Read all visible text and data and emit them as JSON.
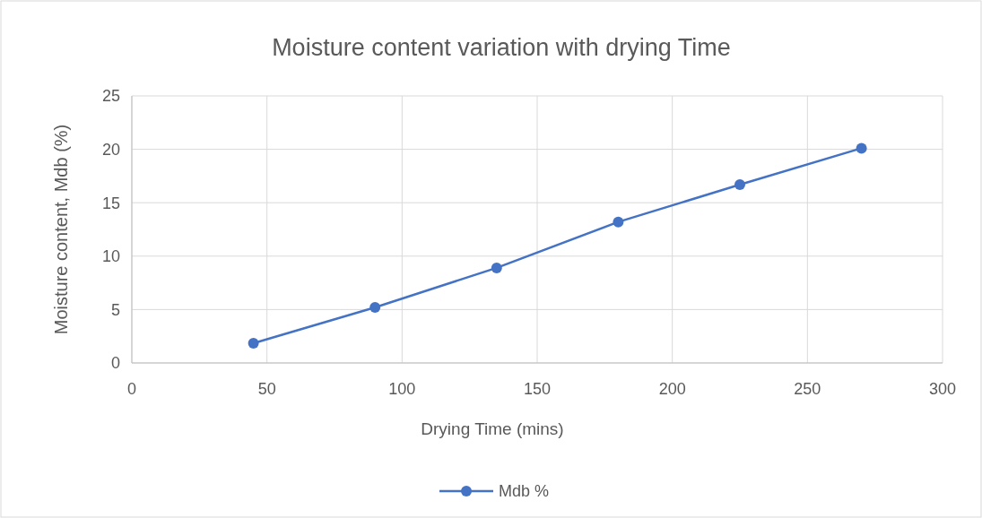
{
  "chart_data": {
    "type": "line",
    "title": "Moisture content variation with drying Time",
    "xlabel": "Drying Time (mins)",
    "ylabel": "Moisture content, Mdb (%)",
    "x": [
      45,
      90,
      135,
      180,
      225,
      270
    ],
    "series": [
      {
        "name": "Mdb %",
        "color": "#4472c4",
        "values": [
          1.85,
          5.2,
          8.9,
          13.2,
          16.7,
          20.1
        ]
      }
    ],
    "xlim": [
      0,
      300
    ],
    "xticks": [
      0,
      50,
      100,
      150,
      200,
      250,
      300
    ],
    "ylim": [
      0,
      25
    ],
    "yticks": [
      0,
      5,
      10,
      15,
      20,
      25
    ],
    "grid": true,
    "legend": "bottom",
    "marker": "circle",
    "line_style": "solid"
  }
}
